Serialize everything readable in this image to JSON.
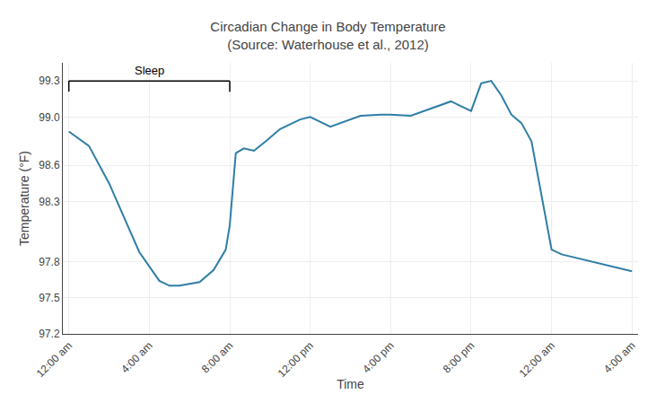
{
  "chart_data": {
    "type": "line",
    "title": "Circadian Change in Body Temperature\n(Source: Waterhouse et al., 2012)",
    "xlabel": "Time",
    "ylabel": "Temperature (°F)",
    "x": [
      0,
      1.0,
      2.0,
      3.5,
      4.5,
      5.0,
      5.5,
      6.5,
      7.2,
      7.8,
      8.0,
      8.3,
      8.7,
      9.2,
      9.8,
      10.5,
      11.5,
      12.0,
      13.0,
      13.8,
      14.5,
      15.5,
      16.0,
      17.0,
      18.0,
      19.0,
      20.0,
      20.5,
      21.0,
      21.5,
      22.0,
      22.5,
      23.0,
      24.0,
      24.5,
      25.0,
      26.0,
      27.0,
      28.0
    ],
    "values": [
      98.88,
      98.76,
      98.45,
      97.88,
      97.64,
      97.6,
      97.6,
      97.63,
      97.73,
      97.9,
      98.1,
      98.7,
      98.74,
      98.72,
      98.8,
      98.9,
      98.98,
      99.0,
      98.92,
      98.97,
      99.01,
      99.02,
      99.02,
      99.01,
      99.07,
      99.13,
      99.05,
      99.28,
      99.3,
      99.18,
      99.02,
      98.95,
      98.8,
      97.9,
      97.86,
      97.84,
      97.8,
      97.76,
      97.72
    ],
    "color": "#2e7ea6",
    "xlim": [
      -0.3,
      28.3
    ],
    "xticks": [
      {
        "value": 0,
        "label": "12:00 am"
      },
      {
        "value": 4,
        "label": "4:00 am"
      },
      {
        "value": 8,
        "label": "8:00 am"
      },
      {
        "value": 12,
        "label": "12:00 pm"
      },
      {
        "value": 16,
        "label": "4:00 pm"
      },
      {
        "value": 20,
        "label": "8:00 pm"
      },
      {
        "value": 24,
        "label": "12:00 am"
      },
      {
        "value": 28,
        "label": "4:00 am"
      }
    ],
    "ylim": [
      97.2,
      99.45
    ],
    "yticks": [
      97.2,
      97.5,
      97.8,
      98.3,
      98.6,
      {
        "value": 99.0,
        "label": "99.0"
      },
      99.3
    ],
    "grid": true,
    "annotations": [
      {
        "text": "Sleep",
        "x_start": 0,
        "x_end": 8,
        "y": 99.3
      }
    ]
  }
}
